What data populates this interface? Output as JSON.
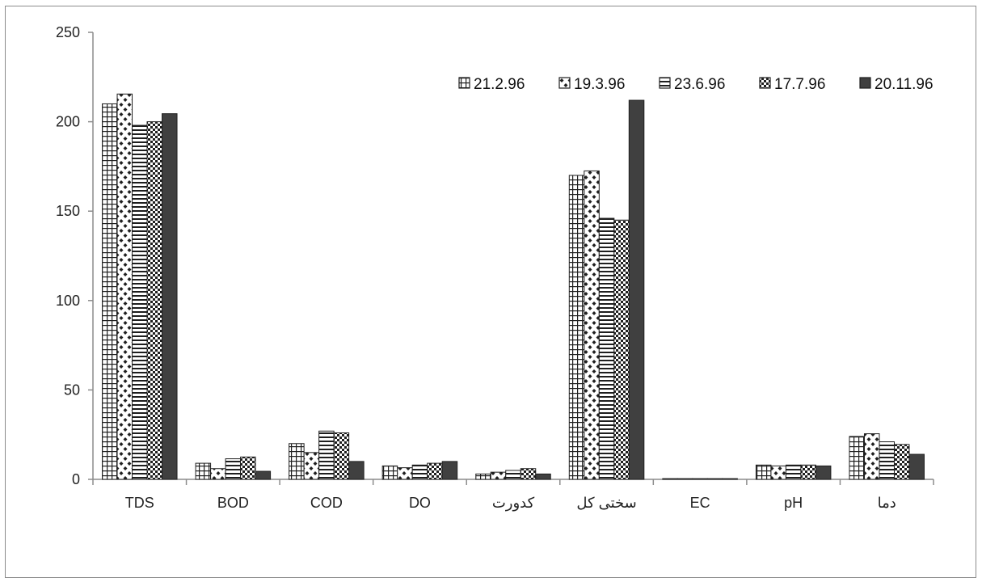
{
  "chart_data": {
    "type": "bar",
    "categories": [
      "TDS",
      "BOD",
      "COD",
      "DO",
      "كدورت",
      "سختی کل",
      "EC",
      "pH",
      "دما"
    ],
    "series": [
      {
        "name": "21.2.96",
        "pattern": "grid",
        "values": [
          210,
          9,
          20,
          7.5,
          3,
          170,
          0.4,
          8,
          24
        ]
      },
      {
        "name": "19.3.96",
        "pattern": "dots",
        "values": [
          215.5,
          6,
          15,
          6.5,
          4,
          172.5,
          0.4,
          7.5,
          25.5
        ]
      },
      {
        "name": "23.6.96",
        "pattern": "hstripes",
        "values": [
          198,
          11.5,
          27,
          8,
          5,
          146,
          0.4,
          8,
          21
        ]
      },
      {
        "name": "17.7.96",
        "pattern": "checker",
        "values": [
          200,
          12.5,
          26,
          9,
          6,
          145,
          0.4,
          8,
          19.5
        ]
      },
      {
        "name": "20.11.96",
        "pattern": "solid",
        "values": [
          204.5,
          4.5,
          10,
          10,
          3,
          212,
          0.4,
          7.5,
          14
        ]
      }
    ],
    "ylim": [
      0,
      250
    ],
    "yticks": [
      0,
      50,
      100,
      150,
      200,
      250
    ],
    "legend_position": "top-right",
    "grid": false,
    "colors": {
      "bar_fill": "#ffffff",
      "bar_ink": "#1f1f1f",
      "solid_fill": "#404040",
      "axis": "#8c8c8c"
    }
  }
}
